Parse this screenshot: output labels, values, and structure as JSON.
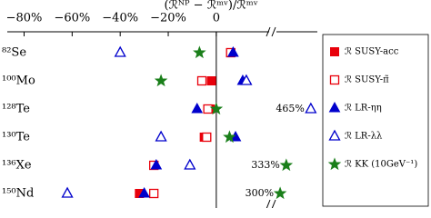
{
  "chart_data": {
    "type": "dot",
    "x_label": "(ℛᴺᴾ − ℛᵐᵛ)/ℛᵐᵛ",
    "categories": [
      "⁸²Se",
      "¹⁰⁰Mo",
      "¹²⁸Te",
      "¹³⁰Te",
      "¹³⁶Xe",
      "¹⁵⁰Nd"
    ],
    "xlim": [
      -87,
      500
    ],
    "xbreak": [
      22,
      280
    ],
    "xticks": [
      {
        "value": -80,
        "label": "−80%"
      },
      {
        "value": -60,
        "label": "−60%"
      },
      {
        "value": -40,
        "label": "−40%"
      },
      {
        "value": -20,
        "label": "−20%"
      },
      0
    ],
    "series": [
      {
        "name": "ℛ SUSY-acc",
        "color": "#e8000b",
        "marker": "square",
        "filled": true,
        "values": [
          6,
          -2,
          -2.5,
          -5,
          -26,
          -32
        ]
      },
      {
        "name": "ℛ SUSY-π̃",
        "color": "#e8000b",
        "marker": "square",
        "filled": false,
        "values": [
          6,
          -6,
          -3.5,
          -4,
          -26,
          -26
        ]
      },
      {
        "name": "ℛ LR-ηη",
        "color": "#0000cc",
        "marker": "triangle",
        "filled": true,
        "values": [
          7,
          11,
          -8,
          8,
          -25,
          -30
        ]
      },
      {
        "name": "ℛ LR-λλ",
        "color": "#0000cc",
        "marker": "triangle",
        "filled": false,
        "values": [
          -40,
          12.5,
          465,
          -23,
          -11,
          -62
        ],
        "value_labels": [
          null,
          null,
          "465%",
          null,
          null,
          null
        ]
      },
      {
        "name": "ℛ KK (10GeV⁻¹)",
        "color": "#1a7f1a",
        "marker": "star",
        "filled": true,
        "values": [
          -7,
          -23,
          0,
          5.5,
          333,
          300
        ],
        "value_labels": [
          null,
          null,
          null,
          null,
          "333%",
          "300%"
        ]
      }
    ]
  }
}
